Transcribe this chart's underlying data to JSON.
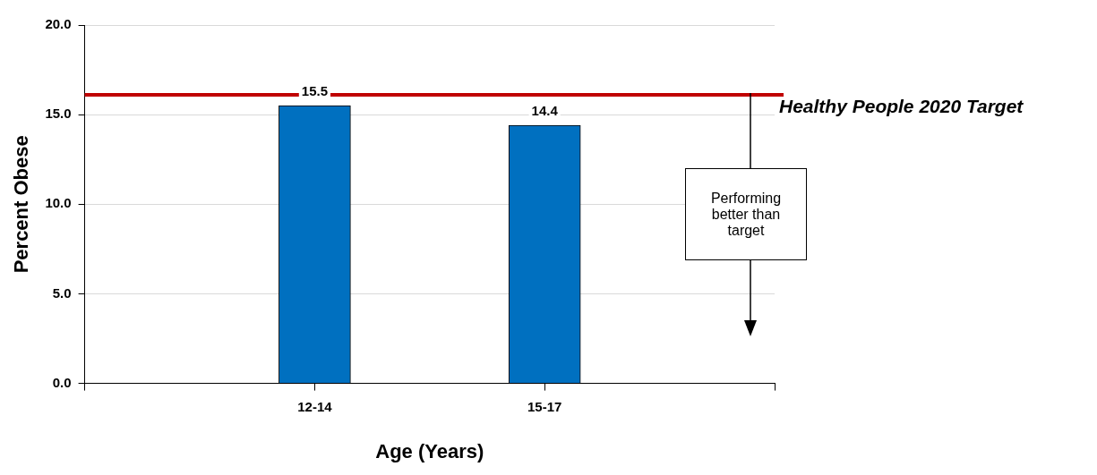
{
  "chart_data": {
    "type": "bar",
    "xlabel": "Age (Years)",
    "ylabel": "Percent Obese",
    "categories": [
      null,
      "12-14",
      "15-17",
      null
    ],
    "series": [
      {
        "color": "#0070c0",
        "values": [
          null,
          15.5,
          14.4,
          null
        ]
      }
    ],
    "ylim": [
      0,
      20
    ],
    "yticks": [
      {
        "value": 0,
        "label": "0.0"
      },
      {
        "value": 5,
        "label": "5.0"
      },
      {
        "value": 10,
        "label": "10.0"
      },
      {
        "value": 15,
        "label": "15.0"
      },
      {
        "value": 20,
        "label": "20.0"
      }
    ],
    "grid": "y",
    "legend": false,
    "data_labels": true,
    "ref_lines": [
      {
        "axis": "y",
        "value": 16.1,
        "label": "Healthy People 2020 Target",
        "color": "#c00000"
      }
    ],
    "annotations": [
      "Performing better than target"
    ]
  }
}
